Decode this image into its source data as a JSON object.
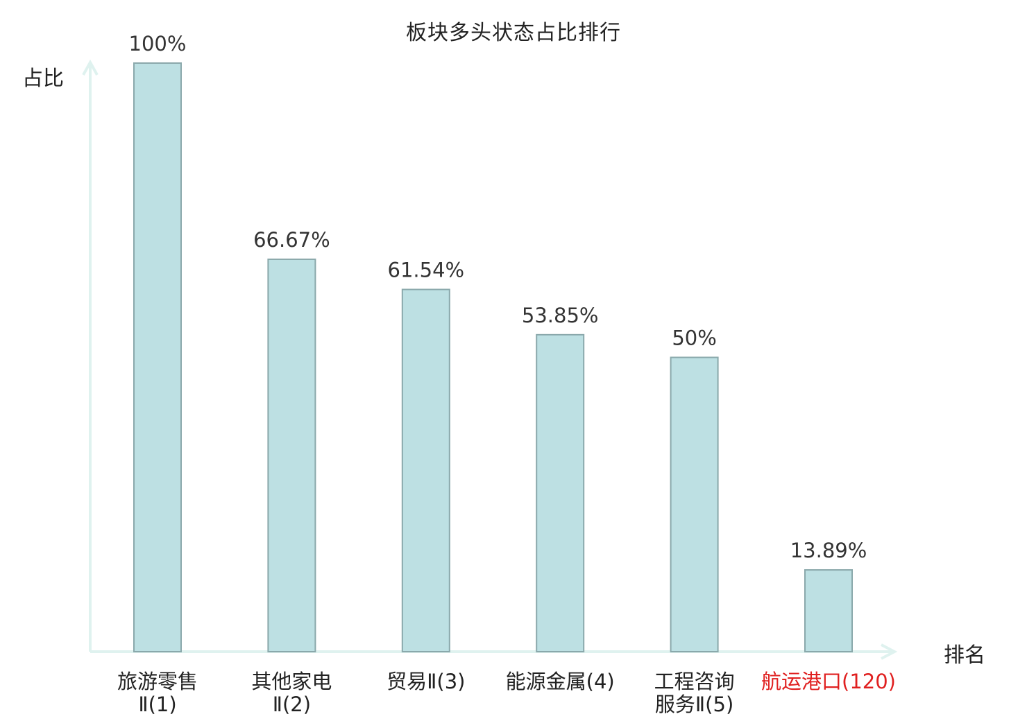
{
  "chart_data": {
    "type": "bar",
    "title": "板块多头状态占比排行",
    "xlabel": "排名",
    "ylabel": "占比",
    "ylim": [
      0,
      100
    ],
    "categories": [
      {
        "lines": [
          "旅游零售",
          "Ⅱ(1)"
        ],
        "highlight": false
      },
      {
        "lines": [
          "其他家电",
          "Ⅱ(2)"
        ],
        "highlight": false
      },
      {
        "lines": [
          "贸易Ⅱ(3)"
        ],
        "highlight": false
      },
      {
        "lines": [
          "能源金属(4)"
        ],
        "highlight": false
      },
      {
        "lines": [
          "工程咨询",
          "服务Ⅱ(5)"
        ],
        "highlight": false
      },
      {
        "lines": [
          "航运港口(120)"
        ],
        "highlight": true
      }
    ],
    "values": [
      100,
      66.67,
      61.54,
      53.85,
      50,
      13.89
    ],
    "value_labels": [
      "100%",
      "66.67%",
      "61.54%",
      "53.85%",
      "50%",
      "13.89%"
    ],
    "grid": false,
    "legend": "none",
    "colors": {
      "bar_fill": "#bde0e3",
      "bar_stroke": "#8aa8ab",
      "axis": "#dff2ef",
      "text": "#222222",
      "value_text": "#333333",
      "highlight_text": "#e02020"
    }
  }
}
